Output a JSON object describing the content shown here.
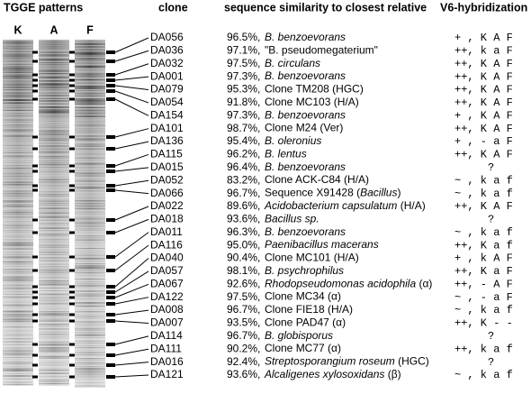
{
  "header": {
    "gel": "TGGE patterns",
    "clone": "clone",
    "similarity": "sequence similarity to closest relative",
    "hybridization": "V6-hybridization"
  },
  "lanes": [
    "K",
    "A",
    "F"
  ],
  "rows": [
    {
      "clone": "DA056",
      "similarity": "96.5%,",
      "relative": [
        {
          "text": "B. benzoevorans",
          "italic": true
        }
      ],
      "hybridization": "+ , K A F"
    },
    {
      "clone": "DA036",
      "similarity": "97.1%,",
      "relative": [
        {
          "text": "\"B. pseudomegaterium\"",
          "italic": false
        }
      ],
      "hybridization": "++, k a F"
    },
    {
      "clone": "DA032",
      "similarity": "97.5%,",
      "relative": [
        {
          "text": "B. circulans",
          "italic": true
        }
      ],
      "hybridization": "++, K A F"
    },
    {
      "clone": "DA001",
      "similarity": "97.3%,",
      "relative": [
        {
          "text": "B. benzoevorans",
          "italic": true
        }
      ],
      "hybridization": "++, K A F"
    },
    {
      "clone": "DA079",
      "similarity": "95.3%,",
      "relative": [
        {
          "text": "Clone TM208 (HGC)",
          "italic": false
        }
      ],
      "hybridization": "++, K A F"
    },
    {
      "clone": "DA054",
      "similarity": "91.8%,",
      "relative": [
        {
          "text": "Clone MC103 (H/A)",
          "italic": false
        }
      ],
      "hybridization": "++, K A F"
    },
    {
      "clone": "DA154",
      "similarity": "97.3%,",
      "relative": [
        {
          "text": "B. benzoevorans",
          "italic": true
        }
      ],
      "hybridization": "+ , K A F"
    },
    {
      "clone": "DA101",
      "similarity": "98.7%,",
      "relative": [
        {
          "text": "Clone M24 (Ver)",
          "italic": false
        }
      ],
      "hybridization": "++, K A F"
    },
    {
      "clone": "DA136",
      "similarity": "95.4%,",
      "relative": [
        {
          "text": "B. oleronius",
          "italic": true
        }
      ],
      "hybridization": "+ , - a F"
    },
    {
      "clone": "DA115",
      "similarity": "96.2%,",
      "relative": [
        {
          "text": "B. lentus",
          "italic": true
        }
      ],
      "hybridization": "++, K A F"
    },
    {
      "clone": "DA015",
      "similarity": "96.4%,",
      "relative": [
        {
          "text": "B. benzoevorans",
          "italic": true
        }
      ],
      "hybridization": "?"
    },
    {
      "clone": "DA052",
      "similarity": "83.2%,",
      "relative": [
        {
          "text": "Clone ACK-C84 (H/A)",
          "italic": false
        }
      ],
      "hybridization": "~ , k a f"
    },
    {
      "clone": "DA066",
      "similarity": "96.7%,",
      "relative": [
        {
          "text": "Sequence X91428 (",
          "italic": false
        },
        {
          "text": "Bacillus",
          "italic": true
        },
        {
          "text": ")",
          "italic": false
        }
      ],
      "hybridization": "~ , k a f"
    },
    {
      "clone": "DA022",
      "similarity": "89.6%,",
      "relative": [
        {
          "text": "Acidobacterium capsulatum",
          "italic": true
        },
        {
          "text": " (H/A)",
          "italic": false
        }
      ],
      "hybridization": "++, K A F"
    },
    {
      "clone": "DA018",
      "similarity": "93.6%,",
      "relative": [
        {
          "text": "Bacillus sp.",
          "italic": true
        }
      ],
      "hybridization": "?"
    },
    {
      "clone": "DA011",
      "similarity": "96.3%,",
      "relative": [
        {
          "text": "B. benzoevorans",
          "italic": true
        }
      ],
      "hybridization": "~ , k a f"
    },
    {
      "clone": "DA116",
      "similarity": "95.0%,",
      "relative": [
        {
          "text": "Paenibacillus macerans",
          "italic": true
        }
      ],
      "hybridization": "++, K a f"
    },
    {
      "clone": "DA040",
      "similarity": "90.4%,",
      "relative": [
        {
          "text": "Clone MC101 (H/A)",
          "italic": false
        }
      ],
      "hybridization": "+ , k A F"
    },
    {
      "clone": "DA057",
      "similarity": "98.1%,",
      "relative": [
        {
          "text": "B. psychrophilus",
          "italic": true
        }
      ],
      "hybridization": "++, K a F"
    },
    {
      "clone": "DA067",
      "similarity": "92.6%,",
      "relative": [
        {
          "text": "Rhodopseudomonas acidophila",
          "italic": true
        },
        {
          "text": " (α)",
          "italic": false
        }
      ],
      "hybridization": "++, - A F"
    },
    {
      "clone": "DA122",
      "similarity": "97.5%,",
      "relative": [
        {
          "text": "Clone MC34 (α)",
          "italic": false
        }
      ],
      "hybridization": "~ , - a F"
    },
    {
      "clone": "DA008",
      "similarity": "96.7%,",
      "relative": [
        {
          "text": "Clone FIE18 (H/A)",
          "italic": false
        }
      ],
      "hybridization": "~ , k a f"
    },
    {
      "clone": "DA007",
      "similarity": "93.5%,",
      "relative": [
        {
          "text": "Clone PAD47 (α)",
          "italic": false
        }
      ],
      "hybridization": "++, K - -"
    },
    {
      "clone": "DA114",
      "similarity": "96.7%,",
      "relative": [
        {
          "text": "B. globisporus",
          "italic": true
        }
      ],
      "hybridization": "?"
    },
    {
      "clone": "DA111",
      "similarity": "90.2%,",
      "relative": [
        {
          "text": "Clone MC77 (α)",
          "italic": false
        }
      ],
      "hybridization": "++, k a f"
    },
    {
      "clone": "DA016",
      "similarity": "92.4%,",
      "relative": [
        {
          "text": "Streptosporangium roseum",
          "italic": true
        },
        {
          "text": " (HGC)",
          "italic": false
        }
      ],
      "hybridization": "?"
    },
    {
      "clone": "DA121",
      "similarity": "93.6%,",
      "relative": [
        {
          "text": "Alcaligenes xylosoxidans",
          "italic": true
        },
        {
          "text": " (β)",
          "italic": false
        }
      ],
      "hybridization": "~ , k a f"
    }
  ]
}
